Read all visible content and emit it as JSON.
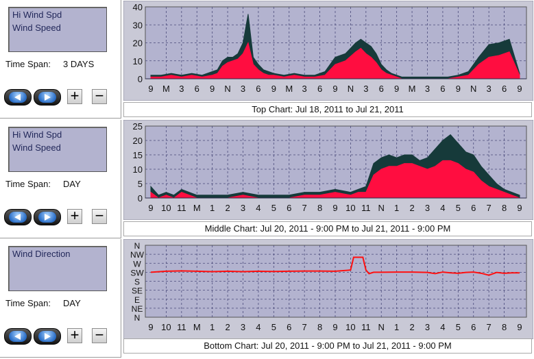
{
  "panels": [
    {
      "series": [
        "Hi Wind Spd",
        "Wind Speed"
      ],
      "time_span_label": "Time Span:",
      "time_span_value": "3 DAYS"
    },
    {
      "series": [
        "Hi Wind Spd",
        "Wind Speed"
      ],
      "time_span_label": "Time Span:",
      "time_span_value": "DAY"
    },
    {
      "series": [
        "Wind Direction"
      ],
      "time_span_label": "Time Span:",
      "time_span_value": "DAY"
    }
  ],
  "buttons": {
    "plus": "+",
    "minus": "−"
  },
  "colors": {
    "plot_bg": "#b3b3cf",
    "hi_wind": "#163a3a",
    "wind": "#ff0d40",
    "direction": "#ff1010"
  },
  "chart_data": [
    {
      "type": "area",
      "caption": "Top Chart:  Jul 18, 2011  to  Jul 21, 2011",
      "ylim": [
        0,
        40
      ],
      "yticks": [
        0,
        10,
        20,
        30,
        40
      ],
      "xtick_labels": [
        "9",
        "M",
        "3",
        "6",
        "9",
        "N",
        "3",
        "6",
        "9",
        "M",
        "3",
        "6",
        "9",
        "N",
        "3",
        "6",
        "9",
        "M",
        "3",
        "6",
        "9",
        "N",
        "3",
        "6",
        "9"
      ],
      "grid": true,
      "series": [
        {
          "name": "Hi Wind Spd",
          "x": [
            0,
            2,
            4,
            6,
            8,
            10,
            12,
            13,
            14,
            15,
            16,
            17,
            18,
            19,
            20,
            21,
            22,
            23,
            24,
            26,
            28,
            30,
            32,
            34,
            36,
            38,
            40,
            41,
            42,
            43,
            44,
            45,
            46,
            47,
            48,
            49,
            50,
            52,
            54,
            56,
            58,
            60,
            62,
            64,
            66,
            68,
            70,
            72
          ],
          "y": [
            2,
            2,
            3,
            2,
            3,
            2,
            4,
            5,
            10,
            12,
            12,
            14,
            20,
            36,
            12,
            8,
            5,
            4,
            3,
            2,
            3,
            2,
            2,
            4,
            12,
            14,
            20,
            22,
            20,
            18,
            14,
            8,
            5,
            3,
            2,
            1,
            1,
            1,
            1,
            1,
            1,
            2,
            4,
            12,
            19,
            20,
            22,
            3
          ]
        },
        {
          "name": "Wind Speed",
          "x": [
            0,
            2,
            4,
            6,
            8,
            10,
            12,
            13,
            14,
            15,
            16,
            17,
            18,
            19,
            20,
            21,
            22,
            23,
            24,
            26,
            28,
            30,
            32,
            34,
            36,
            38,
            40,
            41,
            42,
            43,
            44,
            45,
            46,
            47,
            48,
            49,
            50,
            52,
            54,
            56,
            58,
            60,
            62,
            64,
            66,
            68,
            70,
            72
          ],
          "y": [
            1,
            1,
            2,
            1,
            2,
            1,
            2,
            3,
            7,
            9,
            10,
            11,
            14,
            20,
            8,
            5,
            3,
            2,
            2,
            1,
            2,
            1,
            1,
            2,
            8,
            10,
            15,
            17,
            14,
            12,
            9,
            5,
            3,
            2,
            1,
            0,
            0,
            0,
            0,
            0,
            0,
            1,
            2,
            8,
            12,
            13,
            15,
            2
          ]
        }
      ]
    },
    {
      "type": "area",
      "caption": "Middle Chart:  Jul 20, 2011 - 9:00 PM  to  Jul 21, 2011 - 9:00 PM",
      "ylim": [
        0,
        25
      ],
      "yticks": [
        0,
        5,
        10,
        15,
        20,
        25
      ],
      "xtick_labels": [
        "9",
        "10",
        "11",
        "M",
        "1",
        "2",
        "3",
        "4",
        "5",
        "6",
        "7",
        "8",
        "9",
        "10",
        "11",
        "N",
        "1",
        "2",
        "3",
        "4",
        "5",
        "6",
        "7",
        "8",
        "9"
      ],
      "grid": true,
      "series": [
        {
          "name": "Hi Wind Spd",
          "x": [
            0,
            0.5,
            1,
            1.5,
            2,
            3,
            4,
            5,
            6,
            7,
            8,
            9,
            10,
            11,
            12,
            13,
            13.5,
            14,
            14.5,
            15,
            15.5,
            16,
            16.5,
            17,
            17.5,
            18,
            18.5,
            19,
            19.5,
            20,
            20.5,
            21,
            21.5,
            22,
            22.5,
            23,
            23.5,
            24
          ],
          "y": [
            4,
            1,
            2,
            1,
            3,
            1,
            1,
            1,
            2,
            1,
            1,
            1,
            2,
            2,
            3,
            2,
            3,
            4,
            12,
            14,
            15,
            14,
            15,
            15,
            13,
            14,
            17,
            20,
            22,
            19,
            16,
            15,
            11,
            8,
            5,
            3,
            2,
            1
          ]
        },
        {
          "name": "Wind Speed",
          "x": [
            0,
            0.5,
            1,
            1.5,
            2,
            3,
            4,
            5,
            6,
            7,
            8,
            9,
            10,
            11,
            12,
            13,
            13.5,
            14,
            14.5,
            15,
            15.5,
            16,
            16.5,
            17,
            17.5,
            18,
            18.5,
            19,
            19.5,
            20,
            20.5,
            21,
            21.5,
            22,
            22.5,
            23,
            23.5,
            24
          ],
          "y": [
            2,
            0,
            1,
            0,
            2,
            0,
            0,
            0,
            1,
            0,
            0,
            0,
            1,
            1,
            2,
            1,
            2,
            2,
            8,
            10,
            11,
            11,
            12,
            12,
            11,
            10,
            11,
            13,
            13,
            12,
            10,
            9,
            6,
            4,
            3,
            2,
            1,
            0
          ]
        }
      ]
    },
    {
      "type": "line",
      "caption": "Bottom Chart:  Jul 20, 2011 - 9:00 PM  to  Jul 21, 2011 - 9:00 PM",
      "ytick_labels": [
        "N",
        "NW",
        "W",
        "SW",
        "S",
        "SE",
        "E",
        "NE",
        "N"
      ],
      "xtick_labels": [
        "9",
        "10",
        "11",
        "M",
        "1",
        "2",
        "3",
        "4",
        "5",
        "6",
        "7",
        "8",
        "9",
        "10",
        "11",
        "N",
        "1",
        "2",
        "3",
        "4",
        "5",
        "6",
        "7",
        "8",
        "9"
      ],
      "grid": true,
      "series": [
        {
          "name": "Wind Direction",
          "x": [
            0,
            1,
            2,
            3,
            4,
            5,
            6,
            7,
            8,
            9,
            10,
            11,
            12,
            13,
            13.2,
            13.4,
            13.8,
            14,
            14.2,
            14.5,
            15,
            16,
            17,
            18,
            18.5,
            19,
            19.5,
            20,
            20.5,
            21,
            21.5,
            22,
            22.5,
            23,
            23.5,
            24
          ],
          "y": [
            225,
            230,
            232,
            230,
            228,
            230,
            228,
            230,
            229,
            230,
            231,
            231,
            230,
            236,
            300,
            300,
            300,
            236,
            218,
            225,
            225,
            226,
            226,
            224,
            218,
            226,
            222,
            220,
            224,
            226,
            220,
            210,
            224,
            220,
            222,
            222
          ]
        }
      ]
    }
  ]
}
